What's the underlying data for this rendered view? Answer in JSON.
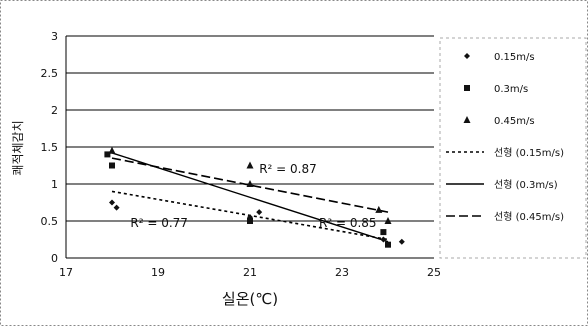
{
  "chart_data": {
    "type": "scatter",
    "xlabel": "실온(℃)",
    "ylabel": "쾌적체감치",
    "xlim": [
      17,
      25
    ],
    "ylim": [
      0,
      3
    ],
    "x_ticks": [
      "17",
      "19",
      "21",
      "23",
      "25"
    ],
    "y_ticks": [
      "0",
      "0.5",
      "1",
      "1.5",
      "2",
      "2.5",
      "3"
    ],
    "grid": true,
    "legend_position": "right",
    "series": [
      {
        "name": "0.15m/s",
        "marker": "diamond",
        "points": [
          [
            18.0,
            0.75
          ],
          [
            18.1,
            0.68
          ],
          [
            21.0,
            0.55
          ],
          [
            21.2,
            0.62
          ],
          [
            23.9,
            0.25
          ],
          [
            24.3,
            0.22
          ]
        ]
      },
      {
        "name": "0.3m/s",
        "marker": "square",
        "points": [
          [
            17.9,
            1.4
          ],
          [
            18.0,
            1.25
          ],
          [
            21.0,
            0.5
          ],
          [
            23.9,
            0.35
          ],
          [
            24.0,
            0.18
          ]
        ]
      },
      {
        "name": "0.45m/s",
        "marker": "triangle",
        "points": [
          [
            18.0,
            1.45
          ],
          [
            21.0,
            1.25
          ],
          [
            21.0,
            1.0
          ],
          [
            23.8,
            0.65
          ],
          [
            24.0,
            0.5
          ]
        ]
      }
    ],
    "trendlines": [
      {
        "name": "선형 (0.15m/s)",
        "style": "dotted",
        "from": [
          18.0,
          0.9
        ],
        "to": [
          24.0,
          0.25
        ]
      },
      {
        "name": "선형 (0.3m/s)",
        "style": "solid",
        "from": [
          18.0,
          1.42
        ],
        "to": [
          24.0,
          0.22
        ]
      },
      {
        "name": "선형 (0.45m/s)",
        "style": "dashed",
        "from": [
          18.0,
          1.35
        ],
        "to": [
          24.0,
          0.62
        ]
      }
    ],
    "annotations": [
      {
        "text": "R² = 0.87",
        "x": 21.2,
        "y": 1.15
      },
      {
        "text": "R² = 0.77",
        "x": 18.4,
        "y": 0.42
      },
      {
        "text": "R² = 0.85",
        "x": 22.5,
        "y": 0.42
      }
    ]
  }
}
